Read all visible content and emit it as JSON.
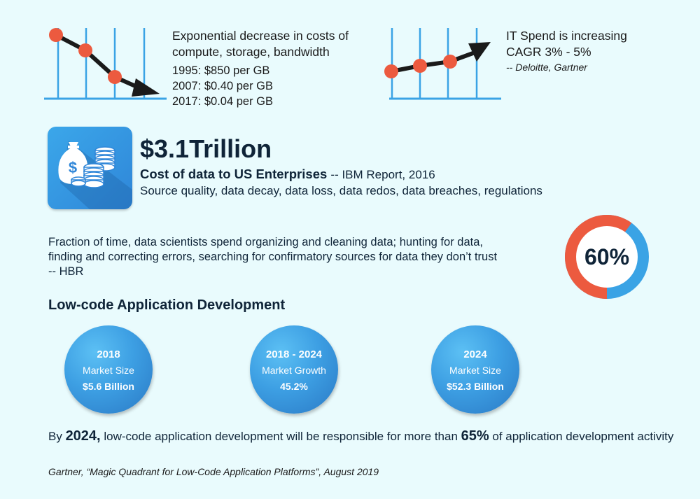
{
  "costs_panel": {
    "heading_line1": "Exponential decrease in costs of",
    "heading_line2": "compute, storage, bandwidth",
    "rows": [
      "1995: $850 per GB",
      "2007: $0.40 per GB",
      "2017: $0.04 per GB"
    ],
    "trend": "down"
  },
  "itspend_panel": {
    "heading_line1": "IT Spend is increasing",
    "heading_line2": "CAGR 3% - 5%",
    "source": "-- Deloitte, Gartner",
    "trend": "up"
  },
  "colors": {
    "background": "#e9fbfd",
    "accent_red": "#ec5a3f",
    "accent_blue": "#3aa3e5",
    "dark_text": "#0f2438"
  },
  "data_cost": {
    "icon": "money-bag-coins-icon",
    "amount": "$3.1Trillion",
    "label": "Cost of data to US Enterprises",
    "source": "-- IBM Report, 2016",
    "reasons": "Source quality, data decay, data loss, data redos, data breaches, regulations"
  },
  "scientists": {
    "line1": "Fraction of time, data scientists spend organizing and cleaning data; hunting for data,",
    "line2": "finding and correcting errors, searching for confirmatory sources for data they don’t trust",
    "line3": "-- HBR",
    "percent_label": "60%",
    "percent_value": 60
  },
  "lowcode": {
    "title": "Low-code Application Development",
    "bubbles": [
      {
        "year": "2018",
        "label": "Market Size",
        "value": "$5.6 Billion"
      },
      {
        "year": "2018 - 2024",
        "label": "Market Growth",
        "value": "45.2%"
      },
      {
        "year": "2024",
        "label": "Market Size",
        "value": "$52.3 Billion"
      }
    ],
    "statement": {
      "pre": "By ",
      "year": "2024,",
      "mid": " low-code application development will be responsible for more than ",
      "pct": "65%",
      "post": " of application development activity"
    },
    "source": "Gartner, “Magic Quadrant for Low-Code Application Platforms”, August 2019"
  }
}
